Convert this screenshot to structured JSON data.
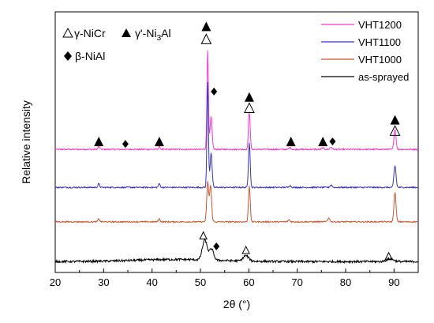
{
  "chart_data": {
    "type": "line",
    "title": "",
    "xlabel": "2θ (°)",
    "ylabel": "Relative intensity",
    "xlim": [
      20,
      95
    ],
    "xticks": [
      20,
      30,
      40,
      50,
      60,
      70,
      80,
      90
    ],
    "yticks_labeled": false,
    "grid": false,
    "legend_position": "top-right",
    "series": [
      {
        "name": "VHT1200",
        "color": "#ff33cc",
        "baseline": 3.4,
        "peaks": [
          {
            "x": 29.0,
            "h": 0.08,
            "w": 0.25
          },
          {
            "x": 41.5,
            "h": 0.07,
            "w": 0.25
          },
          {
            "x": 51.5,
            "h": 2.75,
            "w": 0.22
          },
          {
            "x": 52.2,
            "h": 0.9,
            "w": 0.3
          },
          {
            "x": 60.1,
            "h": 1.05,
            "w": 0.25
          },
          {
            "x": 68.5,
            "h": 0.05,
            "w": 0.3
          },
          {
            "x": 75.3,
            "h": 0.04,
            "w": 0.3
          },
          {
            "x": 77.0,
            "h": 0.06,
            "w": 0.3
          },
          {
            "x": 90.2,
            "h": 0.55,
            "w": 0.3
          }
        ]
      },
      {
        "name": "VHT1100",
        "color": "#3333cc",
        "baseline": 2.35,
        "peaks": [
          {
            "x": 29.0,
            "h": 0.1,
            "w": 0.25
          },
          {
            "x": 41.5,
            "h": 0.1,
            "w": 0.25
          },
          {
            "x": 51.5,
            "h": 2.9,
            "w": 0.22
          },
          {
            "x": 52.2,
            "h": 0.95,
            "w": 0.3
          },
          {
            "x": 60.1,
            "h": 1.25,
            "w": 0.25
          },
          {
            "x": 68.5,
            "h": 0.05,
            "w": 0.3
          },
          {
            "x": 77.0,
            "h": 0.07,
            "w": 0.3
          },
          {
            "x": 90.2,
            "h": 0.6,
            "w": 0.3
          }
        ]
      },
      {
        "name": "VHT1000",
        "color": "#cc5533",
        "baseline": 1.4,
        "peaks": [
          {
            "x": 29.0,
            "h": 0.08,
            "w": 0.25
          },
          {
            "x": 41.5,
            "h": 0.08,
            "w": 0.25
          },
          {
            "x": 51.5,
            "h": 1.1,
            "w": 0.28
          },
          {
            "x": 52.1,
            "h": 1.0,
            "w": 0.3
          },
          {
            "x": 60.1,
            "h": 1.0,
            "w": 0.25
          },
          {
            "x": 68.3,
            "h": 0.05,
            "w": 0.3
          },
          {
            "x": 76.5,
            "h": 0.1,
            "w": 0.35
          },
          {
            "x": 90.2,
            "h": 0.8,
            "w": 0.3
          }
        ]
      },
      {
        "name": "as-sprayed",
        "color": "#000000",
        "baseline": 0.3,
        "peaks": [
          {
            "x": 50.9,
            "h": 0.55,
            "w": 0.7
          },
          {
            "x": 52.3,
            "h": 0.3,
            "w": 0.6
          },
          {
            "x": 59.4,
            "h": 0.15,
            "w": 0.8
          },
          {
            "x": 89.2,
            "h": 0.08,
            "w": 1.0
          }
        ]
      }
    ],
    "phase_legend": [
      {
        "symbol": "open-triangle",
        "text": "γ-NiCr"
      },
      {
        "symbol": "filled-triangle",
        "text": "γ'-Ni",
        "sub": "3",
        "suffix": "Al"
      },
      {
        "symbol": "filled-diamond",
        "text": "β-NiAl"
      }
    ],
    "markers": [
      {
        "type": "filled-triangle",
        "x": 29.0,
        "y": 3.62
      },
      {
        "type": "filled-diamond",
        "x": 34.5,
        "y": 3.55
      },
      {
        "type": "filled-triangle",
        "x": 41.5,
        "y": 3.62
      },
      {
        "type": "filled-triangle",
        "x": 51.2,
        "y": 6.8
      },
      {
        "type": "open-triangle",
        "x": 51.2,
        "y": 6.45
      },
      {
        "type": "filled-diamond",
        "x": 52.8,
        "y": 5.0
      },
      {
        "type": "filled-triangle",
        "x": 60.1,
        "y": 4.85
      },
      {
        "type": "open-triangle",
        "x": 60.1,
        "y": 4.55
      },
      {
        "type": "filled-triangle",
        "x": 68.7,
        "y": 3.62
      },
      {
        "type": "filled-triangle",
        "x": 75.3,
        "y": 3.62
      },
      {
        "type": "filled-diamond",
        "x": 77.3,
        "y": 3.62
      },
      {
        "type": "filled-triangle",
        "x": 90.2,
        "y": 4.22
      },
      {
        "type": "open-triangle",
        "x": 90.2,
        "y": 3.92
      },
      {
        "type": "open-triangle",
        "x": 50.6,
        "y": 1.02
      },
      {
        "type": "filled-diamond",
        "x": 53.3,
        "y": 0.72
      },
      {
        "type": "open-triangle",
        "x": 59.4,
        "y": 0.62
      },
      {
        "type": "open-triangle",
        "x": 88.9,
        "y": 0.45
      }
    ]
  }
}
